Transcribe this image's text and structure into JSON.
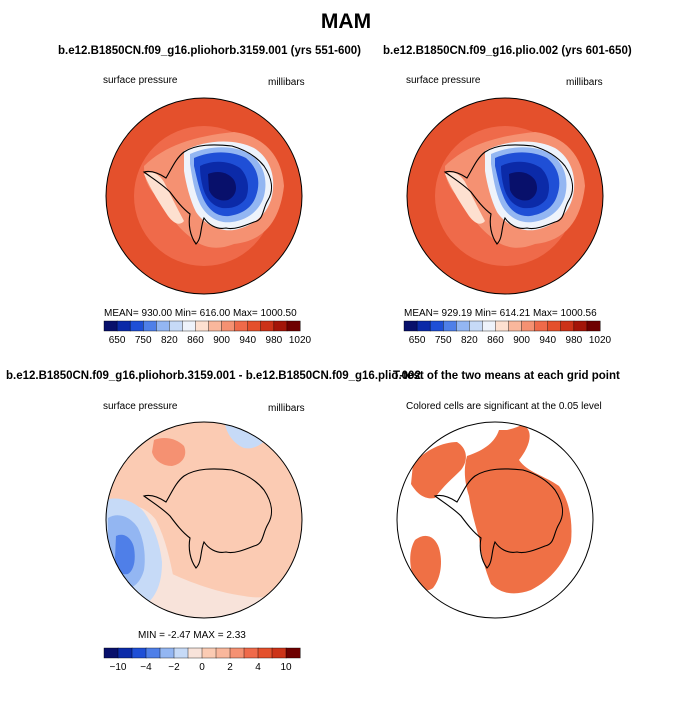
{
  "figure": {
    "title": "MAM"
  },
  "panels": [
    {
      "id": "a",
      "title": "b.e12.B1850CN.f09_g16.pliohorb.3159.001 (yrs 551-600)",
      "left_label": "surface pressure",
      "right_label": "millibars",
      "stats": "MEAN= 930.00    Min= 616.00    Max= 1000.50",
      "colorbar": {
        "ticks": [
          "650",
          "750",
          "820",
          "860",
          "900",
          "940",
          "980",
          "1020"
        ]
      }
    },
    {
      "id": "b",
      "title": "b.e12.B1850CN.f09_g16.plio.002 (yrs 601-650)",
      "left_label": "surface pressure",
      "right_label": "millibars",
      "stats": "MEAN= 929.19    Min= 614.21    Max= 1000.56",
      "colorbar": {
        "ticks": [
          "650",
          "750",
          "820",
          "860",
          "900",
          "940",
          "980",
          "1020"
        ]
      }
    },
    {
      "id": "c",
      "title": "b.e12.B1850CN.f09_g16.pliohorb.3159.001 - b.e12.B1850CN.f09_g16.plio.002",
      "left_label": "surface pressure",
      "right_label": "millibars",
      "stats": "MIN =   -2.47  MAX =    2.33",
      "colorbar": {
        "ticks": [
          "−10",
          "−4",
          "−2",
          "0",
          "2",
          "4",
          "10"
        ]
      }
    },
    {
      "id": "d",
      "title": "T-test of the two means at each grid point",
      "left_label": "Colored cells are significant at the 0.05 level"
    }
  ],
  "colors": {
    "abs_scale": [
      "#08106b",
      "#0b2aa8",
      "#1f4fd6",
      "#4f7fe8",
      "#93b6f2",
      "#c6daf7",
      "#eef3fb",
      "#fde0d0",
      "#f9b79c",
      "#f59172",
      "#ef6a4a",
      "#e4502c",
      "#cc3318",
      "#a31508",
      "#6e0000"
    ],
    "diff_scale": [
      "#08106b",
      "#0b2aa8",
      "#1f4fd6",
      "#4f7fe8",
      "#93b6f2",
      "#c6daf7",
      "#f8e3da",
      "#fbcbb3",
      "#f9b79c",
      "#f59172",
      "#ef6a4a",
      "#e4502c",
      "#cc3318",
      "#6e0000"
    ],
    "significant": "#ef7045"
  }
}
